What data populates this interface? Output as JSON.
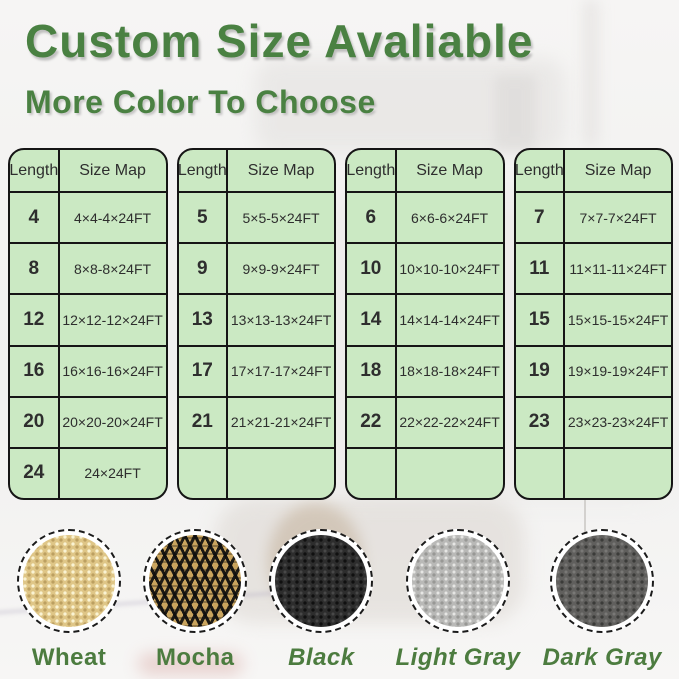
{
  "header": {
    "title": "Custom Size Avaliable",
    "subtitle": "More Color To Choose"
  },
  "size_tables": [
    {
      "columns": [
        "Length",
        "Size Map"
      ],
      "rows": [
        [
          "4",
          "4×4-4×24FT"
        ],
        [
          "8",
          "8×8-8×24FT"
        ],
        [
          "12",
          "12×12-12×24FT"
        ],
        [
          "16",
          "16×16-16×24FT"
        ],
        [
          "20",
          "20×20-20×24FT"
        ],
        [
          "24",
          "24×24FT"
        ]
      ]
    },
    {
      "columns": [
        "Length",
        "Size Map"
      ],
      "rows": [
        [
          "5",
          "5×5-5×24FT"
        ],
        [
          "9",
          "9×9-9×24FT"
        ],
        [
          "13",
          "13×13-13×24FT"
        ],
        [
          "17",
          "17×17-17×24FT"
        ],
        [
          "21",
          "21×21-21×24FT"
        ],
        [
          "",
          ""
        ]
      ]
    },
    {
      "columns": [
        "Length",
        "Size Map"
      ],
      "rows": [
        [
          "6",
          "6×6-6×24FT"
        ],
        [
          "10",
          "10×10-10×24FT"
        ],
        [
          "14",
          "14×14-14×24FT"
        ],
        [
          "18",
          "18×18-18×24FT"
        ],
        [
          "22",
          "22×22-22×24FT"
        ],
        [
          "",
          ""
        ]
      ]
    },
    {
      "columns": [
        "Length",
        "Size Map"
      ],
      "rows": [
        [
          "7",
          "7×7-7×24FT"
        ],
        [
          "11",
          "11×11-11×24FT"
        ],
        [
          "15",
          "15×15-15×24FT"
        ],
        [
          "19",
          "19×19-19×24FT"
        ],
        [
          "23",
          "23×23-23×24FT"
        ],
        [
          "",
          ""
        ]
      ]
    }
  ],
  "color_options": [
    {
      "name": "Wheat",
      "swatch": "wheat",
      "base_color": "#dfc687"
    },
    {
      "name": "Mocha",
      "swatch": "mocha",
      "base_color": "#c9a45e"
    },
    {
      "name": "Black",
      "swatch": "black",
      "base_color": "#2d2d2d"
    },
    {
      "name": "Light Gray",
      "swatch": "light-gray",
      "base_color": "#b9b9b7"
    },
    {
      "name": "Dark Gray",
      "swatch": "dark-gray",
      "base_color": "#605f5d"
    }
  ],
  "palette": {
    "heading_green": "#4a8142",
    "label_green": "#4c7c3f",
    "table_bg_green": "#cbe9c3",
    "table_border": "#151515",
    "page_bg": "#f3f3f2"
  }
}
